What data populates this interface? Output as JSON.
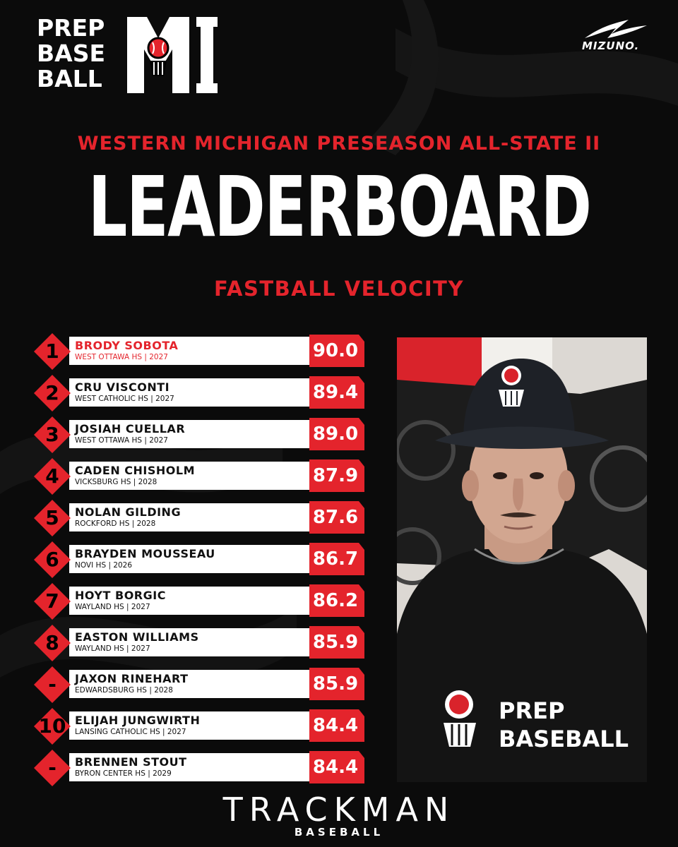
{
  "header": {
    "logo_lines": [
      "PREP",
      "BASE",
      "BALL"
    ],
    "logo_region": "MI",
    "sponsor": "MIZUNO."
  },
  "subtitle": "WESTERN MICHIGAN PRESEASON ALL-STATE II",
  "title": "LEADERBOARD",
  "metric": "FASTBALL VELOCITY",
  "colors": {
    "accent": "#e4242c",
    "background": "#0b0b0b",
    "bar": "#ffffff",
    "rank_box": "#e4242c"
  },
  "leaderboard": [
    {
      "rank": "1",
      "name": "BRODY SOBOTA",
      "school": "WEST OTTAWA HS | 2027",
      "value": "90.0"
    },
    {
      "rank": "2",
      "name": "CRU VISCONTI",
      "school": "WEST CATHOLIC HS | 2027",
      "value": "89.4"
    },
    {
      "rank": "3",
      "name": "JOSIAH CUELLAR",
      "school": "WEST OTTAWA HS | 2027",
      "value": "89.0"
    },
    {
      "rank": "4",
      "name": "CADEN CHISHOLM",
      "school": "VICKSBURG HS | 2028",
      "value": "87.9"
    },
    {
      "rank": "5",
      "name": "NOLAN GILDING",
      "school": "ROCKFORD HS | 2028",
      "value": "87.6"
    },
    {
      "rank": "6",
      "name": "BRAYDEN MOUSSEAU",
      "school": "NOVI HS | 2026",
      "value": "86.7"
    },
    {
      "rank": "7",
      "name": "HOYT BORGIC",
      "school": "WAYLAND HS | 2027",
      "value": "86.2"
    },
    {
      "rank": "8",
      "name": "EASTON WILLIAMS",
      "school": "WAYLAND HS | 2027",
      "value": "85.9"
    },
    {
      "rank": "-",
      "name": "JAXON RINEHART",
      "school": "EDWARDSBURG HS | 2028",
      "value": "85.9"
    },
    {
      "rank": "10",
      "name": "ELIJAH JUNGWIRTH",
      "school": "LANSING CATHOLIC HS | 2027",
      "value": "84.4"
    },
    {
      "rank": "-",
      "name": "BRENNEN STOUT",
      "school": "BYRON CENTER HS | 2029",
      "value": "84.4"
    }
  ],
  "photo": {
    "shirt_line_1": "PREP",
    "shirt_line_2": "BASEBALL"
  },
  "footer": {
    "brand": "TRACKMAN",
    "sub": "BASEBALL"
  }
}
